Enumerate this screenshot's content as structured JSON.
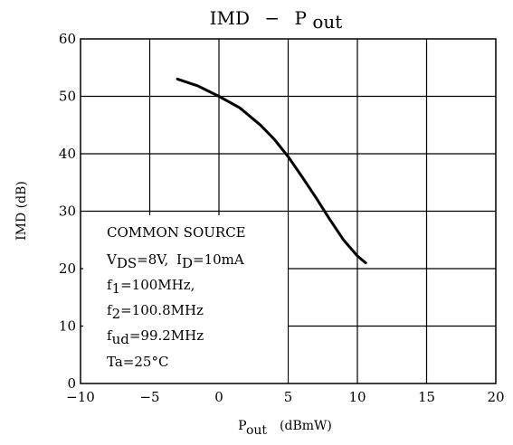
{
  "chart_data": {
    "type": "line",
    "title": {
      "main": "IMD",
      "dash": "−",
      "var": "P",
      "sub": "out"
    },
    "xlabel": {
      "var": "P",
      "sub": "out",
      "unit": "(dBmW)"
    },
    "ylabel": "IMD  (dB)",
    "xlim": [
      -10,
      20
    ],
    "ylim": [
      0,
      60
    ],
    "x_ticks": [
      -10,
      -5,
      0,
      5,
      10,
      15,
      20
    ],
    "x_tick_labels": [
      "−10",
      "−5",
      "0",
      "5",
      "10",
      "15",
      "20"
    ],
    "y_ticks": [
      0,
      10,
      20,
      30,
      40,
      50,
      60
    ],
    "y_tick_labels": [
      "0",
      "10",
      "20",
      "30",
      "40",
      "50",
      "60"
    ],
    "grid": true,
    "series": [
      {
        "x": [
          -3,
          -1.5,
          0,
          1.5,
          3,
          4,
          5,
          6,
          7,
          8,
          9,
          10,
          10.6
        ],
        "y": [
          53,
          51.8,
          50,
          48,
          45,
          42.5,
          39.5,
          36,
          32.4,
          28.6,
          25,
          22.2,
          21
        ]
      }
    ],
    "annotation": {
      "line1": "COMMON SOURCE",
      "line2": {
        "v": "V",
        "v_sub": "DS",
        "v_val": "=8V,",
        "i": "I",
        "i_sub": "D",
        "i_val": "=10mA"
      },
      "line3": {
        "f": "f",
        "sub": "1",
        "val": "=100MHz,"
      },
      "line4": {
        "f": "f",
        "sub": "2",
        "val": "=100.8MHz"
      },
      "line5": {
        "f": "f",
        "sub": "ud",
        "val": "=99.2MHz"
      },
      "line6": "Ta=25°C"
    }
  }
}
